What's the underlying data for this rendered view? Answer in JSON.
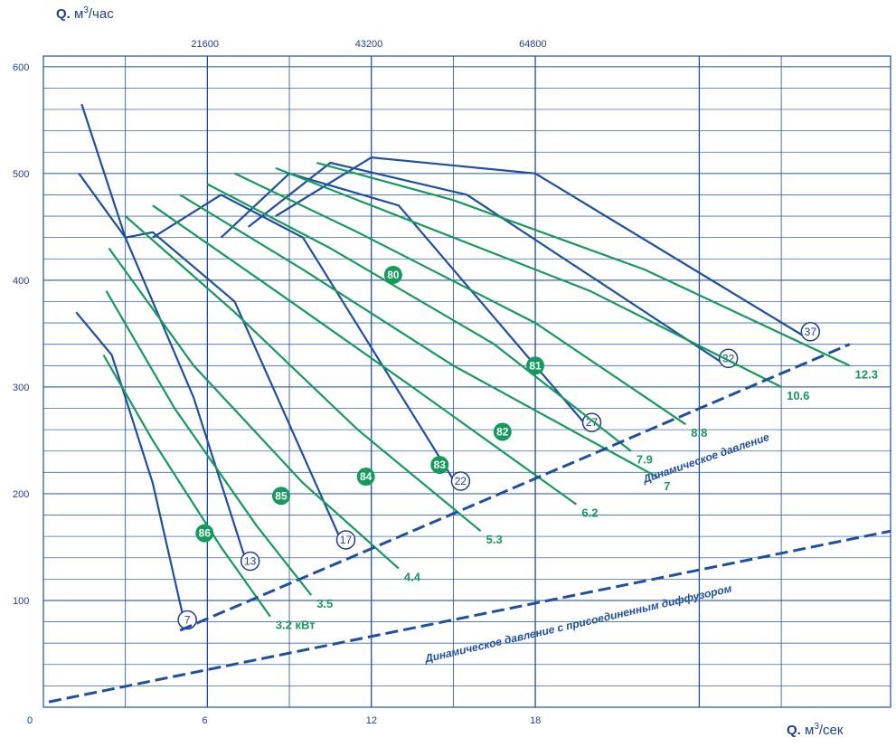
{
  "colors": {
    "blue": "#1f4fa0",
    "navy": "#1f3f8f",
    "green": "#149a5c",
    "bg": "#ffffff"
  },
  "header_top": {
    "q": "Q.",
    "unit_base": "м",
    "unit_sup": "3",
    "unit_rest": "/час"
  },
  "header_bottom": {
    "q": "Q.",
    "unit_base": "м",
    "unit_sup": "3",
    "unit_rest": "/сек"
  },
  "chart_data": {
    "type": "line",
    "title": "",
    "xlabel": "Q. м3/сек",
    "x2label": "Q. м3/час",
    "ylabel": "",
    "x_ticks": [
      0,
      6,
      12,
      18
    ],
    "x2_ticks": [
      21600,
      43200,
      64800
    ],
    "y_ticks": [
      100,
      200,
      300,
      400,
      500,
      600
    ],
    "xlim": [
      0,
      31
    ],
    "ylim": [
      0,
      610
    ],
    "grid": true,
    "fan_curves": [
      {
        "name": "7",
        "x": [
          1.2,
          2.5,
          4.0,
          5.2
        ],
        "y": [
          370,
          330,
          210,
          75
        ]
      },
      {
        "name": "13",
        "x": [
          1.3,
          3.0,
          5.5,
          7.5
        ],
        "y": [
          500,
          440,
          290,
          130
        ]
      },
      {
        "name": "17",
        "x": [
          1.4,
          3.0,
          4.0,
          7.0,
          11.0
        ],
        "y": [
          565,
          440,
          445,
          380,
          150
        ]
      },
      {
        "name": "22",
        "x": [
          4.0,
          6.5,
          9.5,
          15.2
        ],
        "y": [
          440,
          480,
          440,
          205
        ]
      },
      {
        "name": "27",
        "x": [
          6.5,
          9.0,
          13.0,
          20.0
        ],
        "y": [
          440,
          500,
          470,
          260
        ]
      },
      {
        "name": "32",
        "x": [
          7.5,
          10.5,
          15.5,
          25.0
        ],
        "y": [
          450,
          510,
          480,
          320
        ]
      },
      {
        "name": "37",
        "x": [
          8.5,
          12.0,
          18.0,
          28.0
        ],
        "y": [
          460,
          515,
          500,
          345
        ]
      }
    ],
    "power_curves": [
      {
        "name": "3.2 кВт",
        "x": [
          2.2,
          4.0,
          6.5,
          8.3
        ],
        "y": [
          330,
          250,
          150,
          85
        ]
      },
      {
        "name": "3.5",
        "x": [
          2.3,
          4.8,
          7.8,
          9.8
        ],
        "y": [
          390,
          280,
          170,
          105
        ]
      },
      {
        "name": "4.4",
        "x": [
          2.4,
          5.5,
          9.5,
          13.0
        ],
        "y": [
          430,
          320,
          210,
          130
        ]
      },
      {
        "name": "5.3",
        "x": [
          3.0,
          7.0,
          11.5,
          16.0
        ],
        "y": [
          460,
          370,
          260,
          165
        ]
      },
      {
        "name": "6.2",
        "x": [
          4.0,
          8.5,
          13.5,
          19.5
        ],
        "y": [
          470,
          390,
          300,
          190
        ]
      },
      {
        "name": "7",
        "x": [
          5.0,
          9.5,
          15.0,
          22.5
        ],
        "y": [
          480,
          410,
          320,
          215
        ]
      },
      {
        "name": "7.9",
        "x": [
          6.0,
          10.5,
          16.5,
          21.5
        ],
        "y": [
          490,
          430,
          340,
          240
        ]
      },
      {
        "name": "8.8",
        "x": [
          7.0,
          11.5,
          18.0,
          23.5
        ],
        "y": [
          500,
          445,
          360,
          265
        ]
      },
      {
        "name": "10.6",
        "x": [
          8.5,
          13.0,
          20.0,
          27.0
        ],
        "y": [
          505,
          460,
          390,
          300
        ]
      },
      {
        "name": "12.3",
        "x": [
          10.0,
          15.0,
          22.0,
          29.5
        ],
        "y": [
          510,
          475,
          410,
          320
        ]
      }
    ],
    "efficiency_labels": [
      "80",
      "81",
      "82",
      "83",
      "84",
      "85",
      "86"
    ],
    "annotations": [
      "Динамическое давление",
      "Динамическое давление с присоединенным диффузором"
    ]
  }
}
